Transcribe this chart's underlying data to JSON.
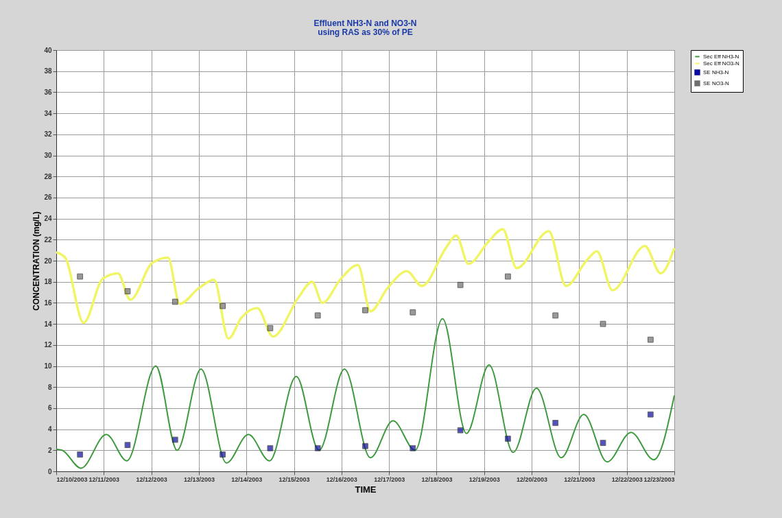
{
  "chart_data": {
    "type": "line",
    "title": "Effluent NH3-N and NO3-N",
    "subtitle": "using RAS as 30% of PE",
    "xlabel": "TIME",
    "ylabel": "CONCENTRATION (mg/L)",
    "xlim": [
      "2003-12-10",
      "2003-12-23"
    ],
    "xticks": [
      {
        "value": "2003-12-10",
        "label": "12/10/2003"
      },
      {
        "value": "2003-12-11",
        "label": "12/11/2003"
      },
      {
        "value": "2003-12-12",
        "label": "12/12/2003"
      },
      {
        "value": "2003-12-13",
        "label": "12/13/2003"
      },
      {
        "value": "2003-12-14",
        "label": "12/14/2003"
      },
      {
        "value": "2003-12-15",
        "label": "12/15/2003"
      },
      {
        "value": "2003-12-16",
        "label": "12/16/2003"
      },
      {
        "value": "2003-12-17",
        "label": "12/17/2003"
      },
      {
        "value": "2003-12-18",
        "label": "12/18/2003"
      },
      {
        "value": "2003-12-19",
        "label": "12/19/2003"
      },
      {
        "value": "2003-12-20",
        "label": "12/20/2003"
      },
      {
        "value": "2003-12-21",
        "label": "12/21/2003"
      },
      {
        "value": "2003-12-22",
        "label": "12/22/2003"
      },
      {
        "value": "2003-12-23",
        "label": "12/23/2003"
      }
    ],
    "ylim": [
      0,
      40
    ],
    "yticks": [
      0,
      2,
      4,
      6,
      8,
      10,
      12,
      14,
      16,
      18,
      20,
      22,
      24,
      26,
      28,
      30,
      32,
      34,
      36,
      38,
      40
    ],
    "grid": true,
    "legend": "top right",
    "series": [
      {
        "name": "Sec Eff NH3-N",
        "color": "#3c9a3c",
        "x": [
          "2003-12-10T00:00",
          "2003-12-10T03:00",
          "2003-12-10T12:30",
          "2003-12-11T01:15",
          "2003-12-11T11:40",
          "2003-12-12T02:15",
          "2003-12-12T13:00",
          "2003-12-13T01:05",
          "2003-12-13T13:55",
          "2003-12-14T01:00",
          "2003-12-14T11:40",
          "2003-12-15T01:10",
          "2003-12-15T12:40",
          "2003-12-16T01:30",
          "2003-12-16T14:35",
          "2003-12-17T02:00",
          "2003-12-17T13:10",
          "2003-12-18T03:00",
          "2003-12-18T15:05",
          "2003-12-19T02:30",
          "2003-12-19T14:40",
          "2003-12-20T02:25",
          "2003-12-20T14:55",
          "2003-12-21T02:20",
          "2003-12-21T14:05",
          "2003-12-22T02:10",
          "2003-12-22T13:40",
          "2003-12-23T00:00"
        ],
        "values": [
          2.1,
          2.0,
          0.3,
          3.5,
          1.0,
          10.0,
          2.0,
          9.7,
          0.8,
          3.5,
          1.0,
          9.0,
          2.0,
          9.7,
          1.3,
          4.8,
          2.0,
          14.5,
          3.6,
          10.1,
          1.8,
          7.9,
          1.3,
          5.4,
          0.9,
          3.7,
          1.1,
          7.2
        ]
      },
      {
        "name": "Sec Eff NO3-N",
        "color": "#f0f566",
        "x": [
          "2003-12-10T00:00",
          "2003-12-10T04:30",
          "2003-12-10T13:50",
          "2003-12-10T23:30",
          "2003-12-11T07:10",
          "2003-12-11T13:25",
          "2003-12-12T00:30",
          "2003-12-12T08:25",
          "2003-12-12T14:20",
          "2003-12-13T00:00",
          "2003-12-13T07:40",
          "2003-12-13T14:55",
          "2003-12-13T21:30",
          "2003-12-14T05:30",
          "2003-12-14T13:25",
          "2003-12-15T02:15",
          "2003-12-15T09:10",
          "2003-12-15T14:20",
          "2003-12-15T23:45",
          "2003-12-16T08:20",
          "2003-12-16T14:35",
          "2003-12-16T23:15",
          "2003-12-17T09:00",
          "2003-12-17T16:35",
          "2003-12-18T04:40",
          "2003-12-18T09:55",
          "2003-12-18T16:05",
          "2003-12-19T02:10",
          "2003-12-19T09:25",
          "2003-12-19T16:25",
          "2003-12-20T08:40",
          "2003-12-20T17:20",
          "2003-12-21T03:40",
          "2003-12-21T08:55",
          "2003-12-21T16:50",
          "2003-12-22T09:10",
          "2003-12-22T17:05",
          "2003-12-23T00:00"
        ],
        "values": [
          20.8,
          20.3,
          14.1,
          18.3,
          18.8,
          16.3,
          19.8,
          20.3,
          15.9,
          17.4,
          18.2,
          12.6,
          14.6,
          15.5,
          12.8,
          16.5,
          18.0,
          16.0,
          18.3,
          19.6,
          15.2,
          17.4,
          19.0,
          17.6,
          21.2,
          22.4,
          19.7,
          21.8,
          23.0,
          19.3,
          22.8,
          17.6,
          20.0,
          20.9,
          17.2,
          21.4,
          18.8,
          21.2
        ]
      },
      {
        "name": "SE NH3-N",
        "type": "scatter",
        "marker": "square",
        "color": "#0a0aa0",
        "x": [
          "2003-12-10T12:00",
          "2003-12-11T12:00",
          "2003-12-12T12:00",
          "2003-12-13T12:00",
          "2003-12-14T12:00",
          "2003-12-15T12:00",
          "2003-12-16T12:00",
          "2003-12-17T12:00",
          "2003-12-18T12:00",
          "2003-12-19T12:00",
          "2003-12-20T12:00",
          "2003-12-21T12:00",
          "2003-12-22T12:00"
        ],
        "values": [
          1.6,
          2.5,
          3.0,
          1.6,
          2.2,
          2.2,
          2.4,
          2.2,
          3.9,
          3.1,
          4.6,
          2.7,
          5.4
        ]
      },
      {
        "name": "SE NO3-N",
        "type": "scatter",
        "marker": "square",
        "color": "#6e6e6e",
        "x": [
          "2003-12-10T12:00",
          "2003-12-11T12:00",
          "2003-12-12T12:00",
          "2003-12-13T12:00",
          "2003-12-14T12:00",
          "2003-12-15T12:00",
          "2003-12-16T12:00",
          "2003-12-17T12:00",
          "2003-12-18T12:00",
          "2003-12-19T12:00",
          "2003-12-20T12:00",
          "2003-12-21T12:00",
          "2003-12-22T12:00"
        ],
        "values": [
          18.5,
          17.1,
          16.1,
          15.7,
          13.6,
          14.8,
          15.3,
          15.1,
          17.7,
          18.5,
          14.8,
          14.0,
          12.5
        ]
      }
    ]
  }
}
